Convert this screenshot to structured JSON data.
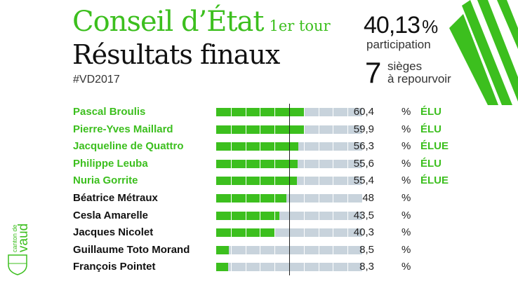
{
  "header": {
    "title": "Conseil d’État",
    "round": "1er tour",
    "subtitle": "Résultats finaux",
    "hashtag": "#VD2017",
    "participation_value": "40,13",
    "participation_unit": "%",
    "participation_label": "participation",
    "seats": "7",
    "seats_label_1": "sièges",
    "seats_label_2": "à repourvoir"
  },
  "logo": {
    "text": "canton de vaud"
  },
  "colors": {
    "accent": "#3cbf1e",
    "bar_bg": "#c8d3dc"
  },
  "chart_data": {
    "type": "bar",
    "orientation": "horizontal",
    "xlim": [
      0,
      100
    ],
    "reference_line": 50,
    "unit": "%",
    "categories": [
      "Pascal Broulis",
      "Pierre-Yves Maillard",
      "Jacqueline de Quattro",
      "Philippe Leuba",
      "Nuria Gorrite",
      "Béatrice Métraux",
      "Cesla Amarelle",
      "Jacques Nicolet",
      "Guillaume Toto Morand",
      "François Pointet"
    ],
    "values": [
      60.4,
      59.9,
      56.3,
      55.6,
      55.4,
      48,
      43.5,
      40.3,
      8.5,
      8.3
    ],
    "labels": [
      "60,4",
      "59,9",
      "56,3",
      "55,6",
      "55,4",
      "48",
      "43,5",
      "40,3",
      "8,5",
      "8,3"
    ],
    "status": [
      "ÉLU",
      "ÉLU",
      "ÉLUE",
      "ÉLU",
      "ÉLUE",
      "",
      "",
      "",
      "",
      ""
    ]
  }
}
